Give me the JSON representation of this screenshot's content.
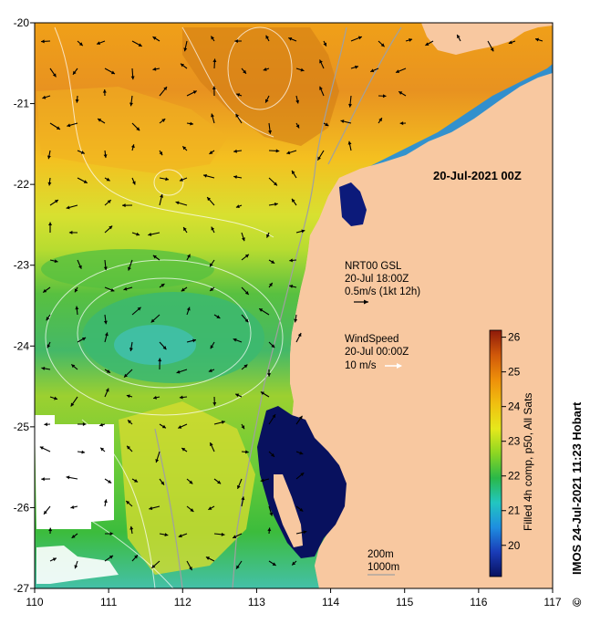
{
  "map": {
    "title": "20-Jul-2021 00Z",
    "lon_ticks": [
      "110",
      "111",
      "112",
      "113",
      "114",
      "115",
      "116",
      "117"
    ],
    "lat_ticks": [
      "-20",
      "-21",
      "-22",
      "-23",
      "-24",
      "-25",
      "-26",
      "-27"
    ],
    "extent": {
      "lon": [
        110,
        117
      ],
      "lat": [
        -27,
        -20
      ]
    },
    "current_legend": {
      "line1": "NRT00 GSL",
      "line2": "20-Jul 18:00Z",
      "line3": "0.5m/s (1kt 12h)"
    },
    "wind_legend": {
      "line1": "WindSpeed",
      "line2": "20-Jul 00:00Z",
      "line3": "10 m/s"
    },
    "isobath_legend": {
      "line1": "200m",
      "line2": "1000m"
    },
    "colorbar": {
      "ticks": [
        "26",
        "25",
        "24",
        "23",
        "22",
        "21",
        "20"
      ],
      "range": [
        19.1,
        26.2
      ],
      "label": "Filled 4h comp, p50, All Sats",
      "colors": [
        "#08115e",
        "#1a3cb8",
        "#1e8ee0",
        "#22c6c0",
        "#2ab848",
        "#8cd622",
        "#e6e81c",
        "#f0c010",
        "#ee8f0a",
        "#d0580a",
        "#8e1a0a"
      ]
    },
    "credit": "IMOS 24-Jul-2021 11:23 Hobart",
    "copyright_symbol": "©",
    "land_color": "#f8c8a0"
  }
}
